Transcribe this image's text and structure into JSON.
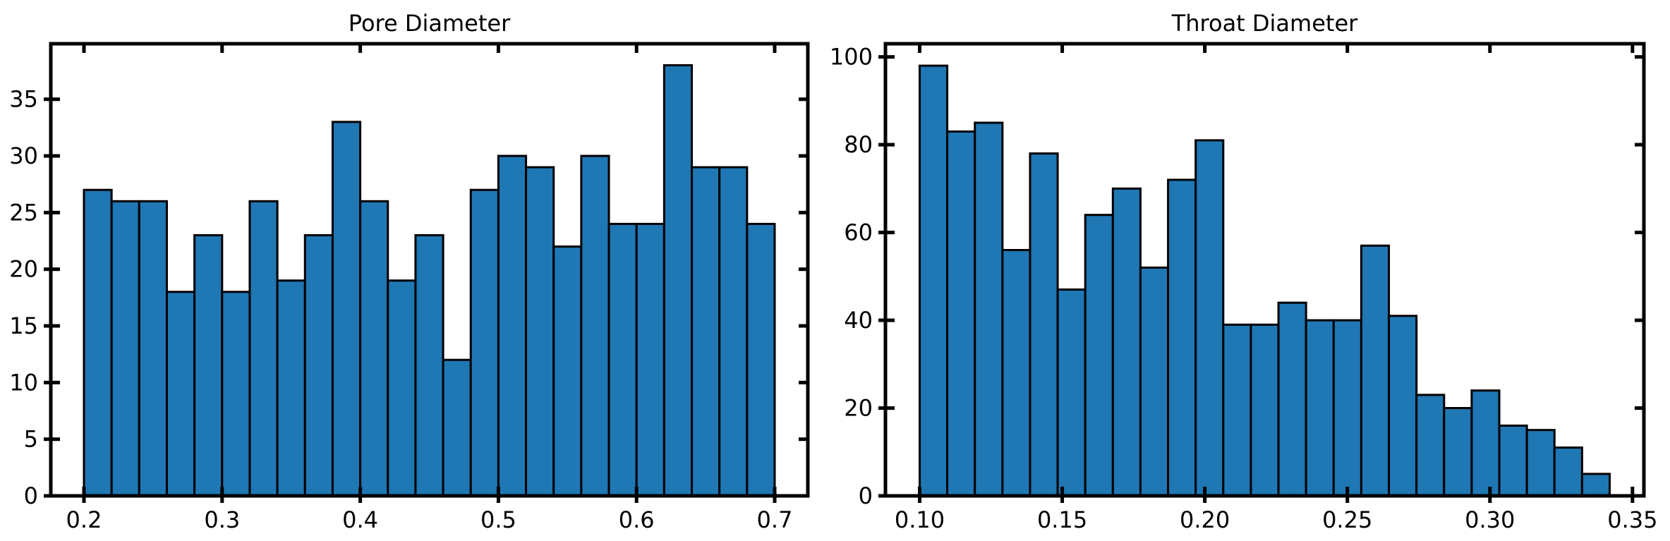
{
  "chart_data": [
    {
      "type": "bar",
      "title": "Pore Diameter",
      "xlabel": "",
      "ylabel": "",
      "bin_start": 0.2,
      "bin_width": 0.02,
      "values": [
        27,
        26,
        26,
        18,
        23,
        18,
        26,
        19,
        23,
        33,
        26,
        19,
        23,
        12,
        27,
        30,
        29,
        22,
        30,
        24,
        24,
        38,
        29,
        29,
        24
      ],
      "xlim": [
        0.176,
        0.724
      ],
      "ylim": [
        0,
        39.9
      ],
      "xticks": [
        0.2,
        0.3,
        0.4,
        0.5,
        0.6,
        0.7
      ],
      "xtick_labels": [
        "0.2",
        "0.3",
        "0.4",
        "0.5",
        "0.6",
        "0.7"
      ],
      "yticks": [
        0,
        5,
        10,
        15,
        20,
        25,
        30,
        35
      ],
      "ytick_labels": [
        "0",
        "5",
        "10",
        "15",
        "20",
        "25",
        "30",
        "35"
      ],
      "grid": false,
      "colors": {
        "bar": "#1f77b4",
        "edge": "#000000"
      }
    },
    {
      "type": "bar",
      "title": "Throat Diameter",
      "xlabel": "",
      "ylabel": "",
      "bin_start": 0.1,
      "bin_width": 0.00968,
      "values": [
        98,
        83,
        85,
        56,
        78,
        47,
        64,
        70,
        52,
        72,
        81,
        39,
        39,
        44,
        40,
        40,
        57,
        41,
        23,
        20,
        24,
        16,
        15,
        11,
        5
      ],
      "xlim": [
        0.088,
        0.354
      ],
      "ylim": [
        0,
        103
      ],
      "xticks": [
        0.1,
        0.15,
        0.2,
        0.25,
        0.3,
        0.35
      ],
      "xtick_labels": [
        "0.10",
        "0.15",
        "0.20",
        "0.25",
        "0.30",
        "0.35"
      ],
      "yticks": [
        0,
        20,
        40,
        60,
        80,
        100
      ],
      "ytick_labels": [
        "0",
        "20",
        "40",
        "60",
        "80",
        "100"
      ],
      "grid": false,
      "colors": {
        "bar": "#1f77b4",
        "edge": "#000000"
      }
    }
  ]
}
